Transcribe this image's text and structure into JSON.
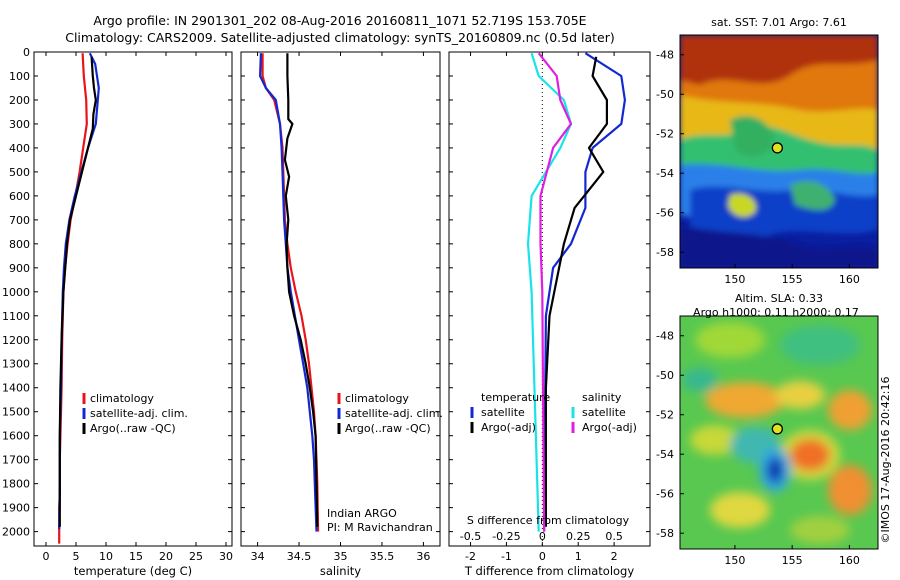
{
  "header": {
    "line1": "Argo profile: IN 2901301_202 08-Aug-2016 20160811_1071 52.719S 153.705E",
    "line2": "Climatology: CARS2009. Satellite-adjusted climatology: synTS_20160809.nc (0.5d later)"
  },
  "colors": {
    "climatology": "#e8141a",
    "satellite": "#1428d2",
    "argo": "#000000",
    "sat_salinity": "#18e4e8",
    "argo_salinity": "#e01ee0"
  },
  "chart_data": [
    {
      "type": "line",
      "id": "temperature",
      "xlabel": "temperature (deg C)",
      "ylabel": "",
      "xlim": [
        -2,
        31
      ],
      "ylim": [
        2060,
        0
      ],
      "xticks": [
        0,
        5,
        10,
        15,
        20,
        25,
        30
      ],
      "yticks": [
        0,
        100,
        200,
        300,
        400,
        500,
        600,
        700,
        800,
        900,
        1000,
        1100,
        1200,
        1300,
        1400,
        1500,
        1600,
        1700,
        1800,
        1900,
        2000
      ],
      "grid": false,
      "legend_position": "lower-center",
      "legend": [
        "climatology",
        "satellite-adj. clim.",
        "Argo(..raw -QC)"
      ],
      "series": [
        {
          "name": "climatology",
          "color": "#e8141a",
          "x": [
            6.1,
            6.3,
            6.7,
            6.8,
            6.2,
            5.6,
            4.9,
            4.1,
            3.6,
            3.2,
            2.9,
            2.7,
            2.6,
            2.5,
            2.4,
            2.3,
            2.3,
            2.3,
            2.2,
            2.2
          ],
          "y": [
            5,
            100,
            200,
            300,
            400,
            500,
            600,
            700,
            800,
            900,
            1000,
            1200,
            1400,
            1500,
            1600,
            1700,
            1800,
            1850,
            1900,
            2050
          ]
        },
        {
          "name": "satellite-adj. clim.",
          "color": "#1428d2",
          "x": [
            7.3,
            8.2,
            8.8,
            8.3,
            7.0,
            5.9,
            4.8,
            3.9,
            3.3,
            3.0,
            2.8,
            2.6,
            2.5,
            2.4,
            2.3,
            2.3,
            2.3,
            2.2
          ],
          "y": [
            5,
            50,
            150,
            300,
            400,
            500,
            600,
            700,
            800,
            900,
            1000,
            1200,
            1400,
            1500,
            1600,
            1700,
            1800,
            1990
          ]
        },
        {
          "name": "Argo(..raw -QC)",
          "color": "#000000",
          "x": [
            7.6,
            7.8,
            8.0,
            8.3,
            7.9,
            7.8,
            7.6,
            6.5,
            5.5,
            4.8,
            4.0,
            3.5,
            3.2,
            2.9,
            2.6,
            2.4,
            2.3,
            2.3,
            2.3
          ],
          "y": [
            20,
            100,
            150,
            200,
            260,
            320,
            340,
            450,
            550,
            620,
            700,
            800,
            900,
            1000,
            1200,
            1400,
            1600,
            1800,
            1980
          ]
        }
      ]
    },
    {
      "type": "line",
      "id": "salinity",
      "xlabel": "salinity",
      "xlim": [
        33.8,
        36.2
      ],
      "ylim": [
        2060,
        0
      ],
      "xticks": [
        34,
        34.5,
        35,
        35.5,
        36
      ],
      "grid": false,
      "legend_position": "lower-right",
      "legend": [
        "climatology",
        "satellite-adj. clim.",
        "Argo(..raw -QC)"
      ],
      "annotation": [
        "Indian ARGO",
        "PI: M Ravichandran"
      ],
      "series": [
        {
          "name": "climatology",
          "color": "#e8141a",
          "x": [
            34.06,
            34.06,
            34.1,
            34.2,
            34.27,
            34.3,
            34.31,
            34.32,
            34.33,
            34.36,
            34.4,
            34.46,
            34.53,
            34.58,
            34.62,
            34.65,
            34.68,
            34.7,
            34.71,
            34.72,
            34.73
          ],
          "y": [
            5,
            100,
            150,
            200,
            300,
            400,
            500,
            600,
            700,
            800,
            900,
            1000,
            1100,
            1200,
            1300,
            1400,
            1500,
            1600,
            1700,
            1800,
            2000
          ]
        },
        {
          "name": "satellite-adj. clim.",
          "color": "#1428d2",
          "x": [
            34.04,
            34.03,
            34.1,
            34.22,
            34.27,
            34.29,
            34.3,
            34.31,
            34.32,
            34.34,
            34.36,
            34.4,
            34.45,
            34.5,
            34.55,
            34.6,
            34.63,
            34.66,
            34.68,
            34.69,
            34.71
          ],
          "y": [
            5,
            100,
            150,
            200,
            300,
            400,
            500,
            600,
            700,
            800,
            900,
            1000,
            1100,
            1200,
            1300,
            1400,
            1500,
            1600,
            1700,
            1800,
            2000
          ]
        },
        {
          "name": "Argo(..raw -QC)",
          "color": "#000000",
          "x": [
            34.36,
            34.36,
            34.37,
            34.37,
            34.42,
            34.36,
            34.33,
            34.38,
            34.34,
            34.37,
            34.35,
            34.36,
            34.38,
            34.44,
            34.52,
            34.58,
            34.63,
            34.67,
            34.7,
            34.71,
            34.72
          ],
          "y": [
            5,
            100,
            200,
            280,
            300,
            360,
            450,
            520,
            600,
            700,
            800,
            900,
            1000,
            1100,
            1200,
            1300,
            1400,
            1500,
            1600,
            1800,
            1980
          ]
        }
      ]
    },
    {
      "type": "line",
      "id": "difference",
      "xlabel": "T difference from climatology",
      "xlabel_top": "S difference from climatology",
      "xlim": [
        -2.6,
        3.0
      ],
      "ylim": [
        2060,
        0
      ],
      "xticks": [
        -2,
        -1,
        0,
        1,
        2
      ],
      "xticks_s": [
        -0.5,
        -0.25,
        0,
        0.25,
        0.5
      ],
      "grid": false,
      "legend_position": "lower-center",
      "legend_groups": [
        {
          "title": "temperature",
          "items": [
            "satellite",
            "Argo(-adj)"
          ]
        },
        {
          "title": "salinity",
          "items": [
            "satellite",
            "Argo(-adj)"
          ]
        }
      ],
      "series": [
        {
          "name": "temperature satellite",
          "color": "#1428d2",
          "x": [
            1.2,
            2.2,
            2.3,
            2.2,
            1.4,
            1.2,
            1.2,
            0.8,
            0.3,
            0.1,
            0.05
          ],
          "y": [
            5,
            100,
            200,
            300,
            400,
            500,
            650,
            800,
            900,
            1100,
            2000
          ]
        },
        {
          "name": "temperature Argo(-adj)",
          "color": "#000000",
          "x": [
            1.5,
            1.4,
            1.8,
            1.8,
            1.3,
            1.7,
            0.9,
            0.6,
            0.4,
            0.2,
            0.1,
            0.1
          ],
          "y": [
            20,
            100,
            200,
            300,
            400,
            500,
            650,
            800,
            950,
            1100,
            1400,
            1980
          ]
        },
        {
          "name": "salinity satellite",
          "color": "#18e4e8",
          "x": [
            -0.3,
            -0.1,
            0.6,
            0.8,
            0.5,
            -0.3,
            -0.4,
            -0.3,
            -0.1
          ],
          "y": [
            5,
            100,
            200,
            300,
            400,
            600,
            800,
            1000,
            2000
          ]
        },
        {
          "name": "salinity Argo(-adj)",
          "color": "#e01ee0",
          "x": [
            -0.1,
            0.4,
            0.5,
            0.8,
            0.3,
            -0.05,
            -0.05,
            0.0,
            0.05
          ],
          "y": [
            5,
            100,
            200,
            300,
            400,
            600,
            800,
            1000,
            2000
          ]
        }
      ]
    },
    {
      "type": "heatmap",
      "id": "sst_map",
      "title": "sat. SST: 7.01 Argo: 7.61",
      "xticks": [
        150,
        155,
        160
      ],
      "yticks": [
        -48,
        -50,
        -52,
        -54,
        -56,
        -58
      ],
      "xlim": [
        145.2,
        162.5
      ],
      "ylim": [
        -58.8,
        -47
      ],
      "marker": {
        "lon": 153.705,
        "lat": -52.719
      }
    },
    {
      "type": "heatmap",
      "id": "sla_map",
      "title": "Altim. SLA: 0.33",
      "subtitle": "Argo h1000: 0.11 h2000: 0.17",
      "xticks": [
        150,
        155,
        160
      ],
      "yticks": [
        -48,
        -50,
        -52,
        -54,
        -56,
        -58
      ],
      "xlim": [
        145.2,
        162.5
      ],
      "ylim": [
        -58.8,
        -47
      ],
      "marker": {
        "lon": 153.705,
        "lat": -52.719
      },
      "side_label": "©IMOS 17-Aug-2016 20:42:16"
    }
  ]
}
